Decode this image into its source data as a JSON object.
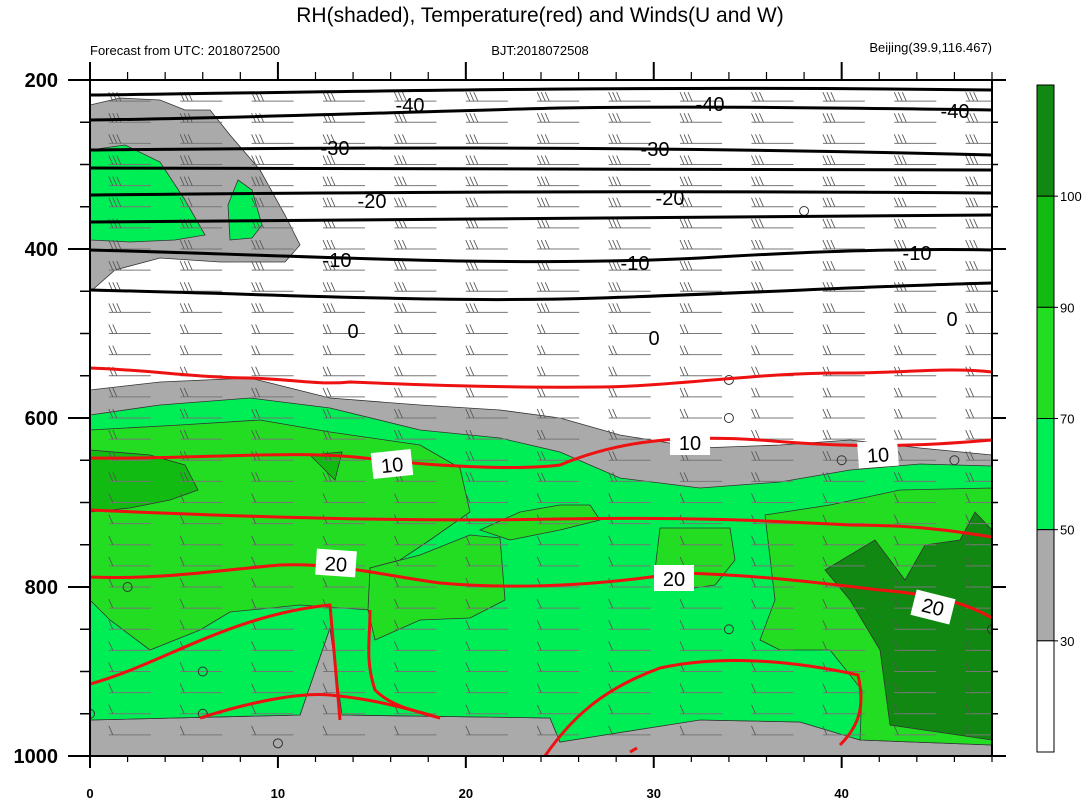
{
  "chart_data": {
    "type": "heatmap",
    "title": "RH(shaded), Temperature(red) and Winds(U and W)",
    "subtitle_left": "Forecast from UTC: 2018072500",
    "subtitle_center": "BJT:2018072508",
    "subtitle_right": "Beijing(39.9,116.467)",
    "xlim": [
      0,
      48
    ],
    "ylim": [
      1000,
      200
    ],
    "y_axis_reversed": true,
    "y_ticks": [
      "200",
      "400",
      "600",
      "800",
      "1000"
    ],
    "x_ticks": [
      "0",
      "10",
      "20",
      "30",
      "40"
    ],
    "colorbar": {
      "tick_labels": [
        "30",
        "50",
        "70",
        "90",
        "100"
      ],
      "levels": [
        {
          "range": "below 30",
          "color": "#ffffff"
        },
        {
          "range": "30-50",
          "color": "#aaaaaa"
        },
        {
          "range": "50-70",
          "color": "#00ee55"
        },
        {
          "range": "70-90",
          "color": "#22dd22"
        },
        {
          "range": "90-100",
          "color": "#11bb11"
        },
        {
          "range": "above 100",
          "color": "#118811"
        }
      ]
    },
    "temperature_contours": {
      "black": [
        {
          "value": -40,
          "label": "-40",
          "p_levels": [
            215,
            225,
            240
          ]
        },
        {
          "value": -30,
          "label": "-30",
          "p_levels": [
            290,
            293,
            300
          ]
        },
        {
          "value": -20,
          "label": "-20",
          "p_levels": [
            355,
            358,
            360
          ]
        },
        {
          "value": -10,
          "label": "-10",
          "p_levels": [
            430,
            447,
            430
          ]
        },
        {
          "value": 0,
          "label": "0",
          "p_levels": [
            525,
            530,
            520
          ]
        }
      ],
      "red": [
        {
          "value": 10,
          "label": "10",
          "p_levels": [
            710,
            715,
            690
          ]
        },
        {
          "value": 20,
          "label": "20",
          "p_levels": [
            865,
            855,
            905
          ]
        }
      ]
    },
    "wind_barbs": "present at all levels"
  },
  "colors": {
    "gray": "#aaaaaa",
    "green_light": "#00ee55",
    "green_mid": "#22dd22",
    "green_dark": "#118811",
    "temperature_line": "#ee1111",
    "isotherm_black": "#000000"
  }
}
